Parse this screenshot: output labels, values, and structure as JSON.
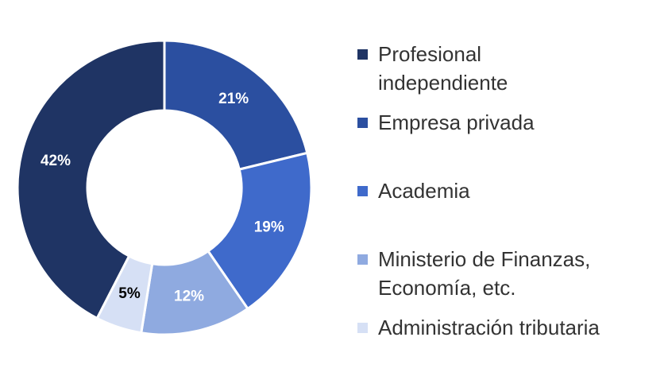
{
  "chart_data": {
    "type": "donut",
    "categories": [
      "Profesional independiente",
      "Empresa privada",
      "Academia",
      "Ministerio de Finanzas, Economía, etc.",
      "Administración tributaria"
    ],
    "values": [
      42,
      21,
      19,
      12,
      5
    ],
    "value_labels": [
      "42%",
      "21%",
      "19%",
      "12%",
      "5%"
    ],
    "colors": [
      "#1f3464",
      "#2b4fa0",
      "#3f6acb",
      "#8faae0",
      "#d6e0f5"
    ],
    "label_colors": [
      "#ffffff",
      "#ffffff",
      "#ffffff",
      "#ffffff",
      "#000000"
    ],
    "legend": "right"
  }
}
